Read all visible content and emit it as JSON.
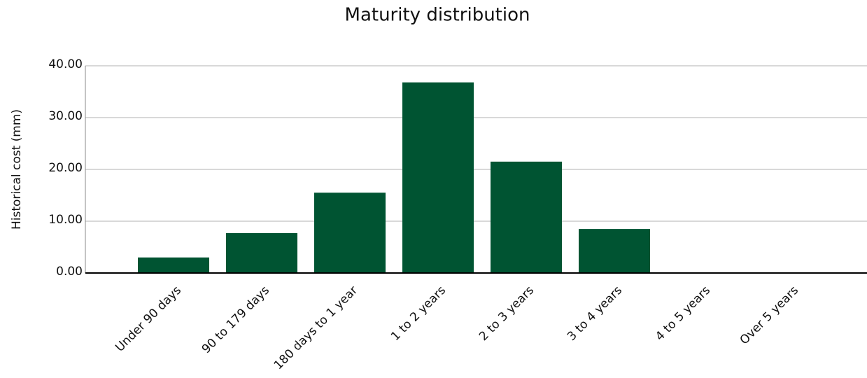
{
  "chart_data": {
    "type": "bar",
    "title": "Maturity distribution",
    "y_label": "Historical cost (mm)",
    "categories": [
      "Under 90 days",
      "90 to 179 days",
      "180 days to 1 year",
      "1 to 2 years",
      "2 to 3 years",
      "3 to 4 years",
      "4 to 5 years",
      "Over 5 years"
    ],
    "values": [
      3.0,
      7.7,
      15.5,
      36.8,
      21.5,
      8.5,
      0,
      0
    ],
    "color": "#005432",
    "ylim": [
      0,
      40
    ],
    "yticks": [
      {
        "value": 0,
        "label": "0.00"
      },
      {
        "value": 10,
        "label": "10.00"
      },
      {
        "value": 20,
        "label": "20.00"
      },
      {
        "value": 30,
        "label": "30.00"
      },
      {
        "value": 40,
        "label": "40.00"
      }
    ],
    "grid": true
  }
}
